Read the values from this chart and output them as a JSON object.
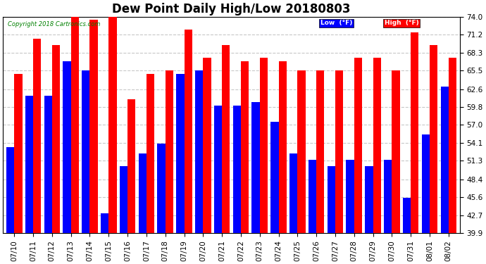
{
  "title": "Dew Point Daily High/Low 20180803",
  "copyright": "Copyright 2018 Cartronics.com",
  "dates": [
    "07/10",
    "07/11",
    "07/12",
    "07/13",
    "07/14",
    "07/15",
    "07/16",
    "07/17",
    "07/18",
    "07/19",
    "07/20",
    "07/21",
    "07/22",
    "07/23",
    "07/24",
    "07/25",
    "07/26",
    "07/27",
    "07/28",
    "07/29",
    "07/30",
    "07/31",
    "08/01",
    "08/02"
  ],
  "low_values": [
    53.5,
    61.5,
    61.5,
    67.0,
    65.5,
    43.0,
    50.5,
    52.5,
    54.0,
    65.0,
    65.5,
    60.0,
    60.0,
    60.5,
    57.5,
    52.5,
    51.5,
    50.5,
    51.5,
    50.5,
    51.5,
    45.5,
    55.5,
    63.0
  ],
  "high_values": [
    65.0,
    70.5,
    69.5,
    74.0,
    73.5,
    74.0,
    61.0,
    65.0,
    65.5,
    72.0,
    67.5,
    69.5,
    67.0,
    67.5,
    67.0,
    65.5,
    65.5,
    65.5,
    67.5,
    67.5,
    65.5,
    71.5,
    69.5,
    67.5
  ],
  "low_color": "#0000FF",
  "high_color": "#FF0000",
  "bg_color": "#FFFFFF",
  "plot_bg_color": "#FFFFFF",
  "grid_color": "#C8C8C8",
  "yticks": [
    39.9,
    42.7,
    45.6,
    48.4,
    51.3,
    54.1,
    57.0,
    59.8,
    62.6,
    65.5,
    68.3,
    71.2,
    74.0
  ],
  "ymin": 39.9,
  "ymax": 74.0,
  "title_fontsize": 12,
  "tick_fontsize": 7.5,
  "legend_low_label": "Low  (°F)",
  "legend_high_label": "High  (°F)"
}
